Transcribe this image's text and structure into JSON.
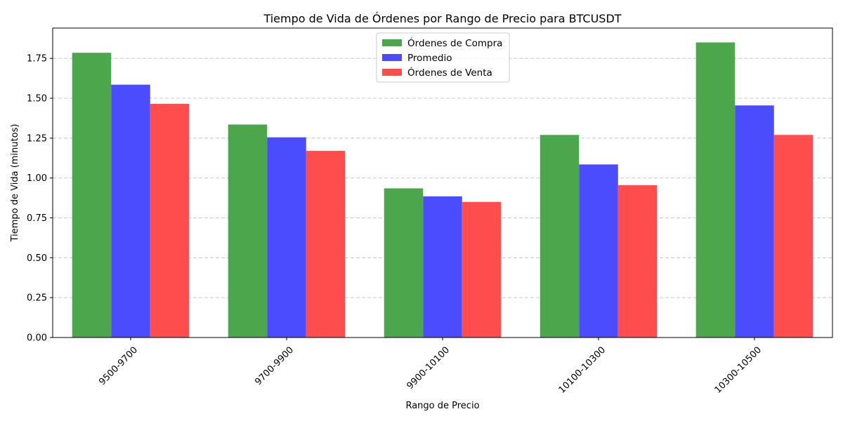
{
  "chart_data": {
    "type": "bar",
    "title": "Tiempo de Vida de Órdenes por Rango de Precio para BTCUSDT",
    "xlabel": "Rango de Precio",
    "ylabel": "Tiempo de Vida (minutos)",
    "categories": [
      "9500-9700",
      "9700-9900",
      "9900-10100",
      "10100-10300",
      "10300-10500"
    ],
    "series": [
      {
        "name": "Órdenes de Compra",
        "color": "#4ca64c",
        "values": [
          1.785,
          1.335,
          0.935,
          1.27,
          1.85
        ]
      },
      {
        "name": "Promedio",
        "color": "#4c4cff",
        "values": [
          1.585,
          1.255,
          0.885,
          1.085,
          1.455
        ]
      },
      {
        "name": "Órdenes de Venta",
        "color": "#ff4c4c",
        "values": [
          1.465,
          1.17,
          0.85,
          0.955,
          1.27
        ]
      }
    ],
    "ylim": [
      0,
      1.94
    ],
    "yticks": [
      "0.00",
      "0.25",
      "0.50",
      "0.75",
      "1.00",
      "1.25",
      "1.50",
      "1.75"
    ],
    "grid": "horizontal-dashed",
    "legend_position": "top-center"
  }
}
